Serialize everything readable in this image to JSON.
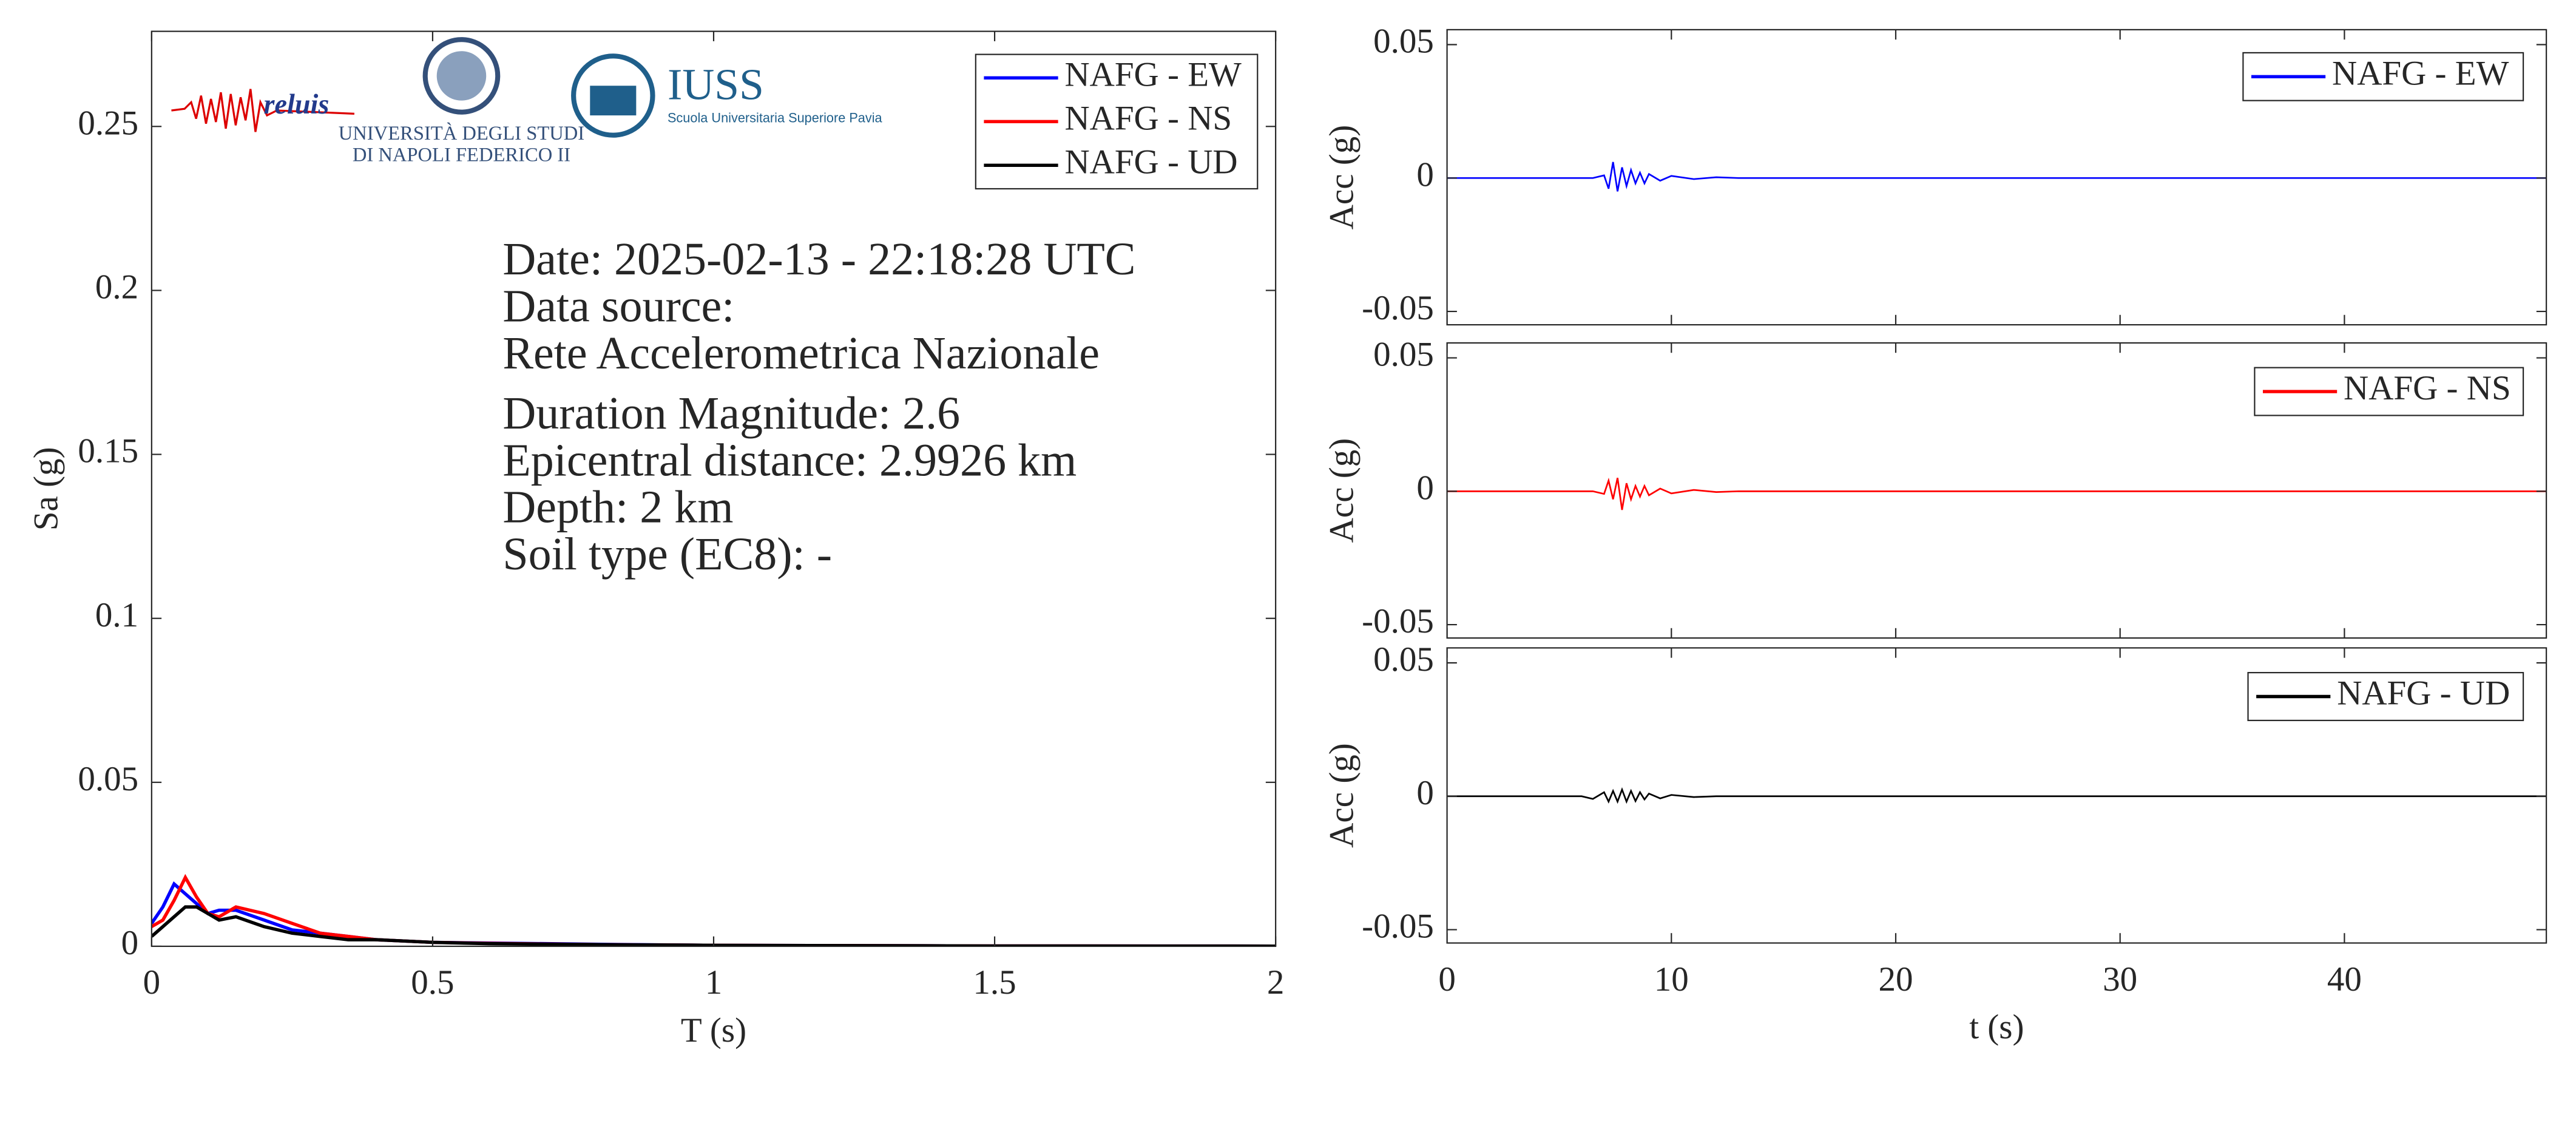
{
  "logos": {
    "reluis": "reluis",
    "unina_line1": "UNIVERSITÀ DEGLI STUDI",
    "unina_line2": "DI NAPOLI FEDERICO II",
    "iuss": "IUSS",
    "iuss_sub": "Scuola Universitaria Superiore Pavia"
  },
  "chart_data": [
    {
      "type": "line",
      "xlabel": "T (s)",
      "ylabel": "Sa (g)",
      "xlim": [
        0,
        2
      ],
      "ylim": [
        0,
        0.279
      ],
      "xticks": [
        0,
        0.5,
        1,
        1.5,
        2
      ],
      "yticks": [
        0,
        0.05,
        0.1,
        0.15,
        0.2,
        0.25
      ],
      "legend": "upper right",
      "annotations": [
        "Date: 2025-02-13 - 22:18:28 UTC",
        "Data source:",
        "Rete Accelerometrica Nazionale",
        "Duration Magnitude: 2.6",
        "Epicentral distance: 2.9926 km",
        "Depth: 2 km",
        "Soil type (EC8): -"
      ],
      "x": [
        0,
        0.02,
        0.04,
        0.06,
        0.08,
        0.1,
        0.12,
        0.15,
        0.2,
        0.25,
        0.3,
        0.35,
        0.4,
        0.5,
        0.6,
        0.8,
        1,
        1.5,
        2
      ],
      "series": [
        {
          "name": "NAFG - EW",
          "color": "#0000ff",
          "values": [
            0.007,
            0.012,
            0.019,
            0.016,
            0.013,
            0.01,
            0.011,
            0.011,
            0.008,
            0.005,
            0.004,
            0.003,
            0.002,
            0.0012,
            0.001,
            0.0006,
            0.0003,
            0.0001,
            5e-05
          ]
        },
        {
          "name": "NAFG - NS",
          "color": "#ff0000",
          "values": [
            0.006,
            0.008,
            0.014,
            0.021,
            0.015,
            0.01,
            0.009,
            0.012,
            0.01,
            0.007,
            0.004,
            0.003,
            0.002,
            0.0012,
            0.0009,
            0.0005,
            0.0003,
            0.0001,
            5e-05
          ]
        },
        {
          "name": "NAFG - UD",
          "color": "#000000",
          "values": [
            0.003,
            0.006,
            0.009,
            0.012,
            0.012,
            0.01,
            0.008,
            0.009,
            0.006,
            0.004,
            0.003,
            0.002,
            0.002,
            0.0012,
            0.0008,
            0.0005,
            0.0003,
            0.0001,
            5e-05
          ]
        }
      ]
    },
    {
      "type": "line",
      "ylabel": "Acc (g)",
      "xlim": [
        0,
        49
      ],
      "ylim": [
        -0.055,
        0.0556
      ],
      "xticks": [
        0,
        10,
        20,
        30,
        40
      ],
      "yticks": [
        -0.05,
        0,
        0.05
      ],
      "legend": "upper right",
      "x": [
        0,
        6.5,
        7,
        7.2,
        7.4,
        7.6,
        7.8,
        8,
        8.2,
        8.4,
        8.6,
        8.8,
        9,
        9.5,
        10,
        11,
        12,
        13,
        49
      ],
      "series": [
        {
          "name": "NAFG - EW",
          "color": "#0000ff",
          "values": [
            0,
            0,
            0.001,
            -0.004,
            0.006,
            -0.005,
            0.004,
            -0.003,
            0.003,
            -0.002,
            0.002,
            -0.002,
            0.0015,
            -0.001,
            0.0008,
            -0.0004,
            0.0003,
            0,
            0
          ]
        }
      ]
    },
    {
      "type": "line",
      "ylabel": "Acc (g)",
      "xlim": [
        0,
        49
      ],
      "ylim": [
        -0.055,
        0.0556
      ],
      "xticks": [
        0,
        10,
        20,
        30,
        40
      ],
      "yticks": [
        -0.05,
        0,
        0.05
      ],
      "legend": "upper right",
      "x": [
        0,
        6.5,
        7,
        7.2,
        7.4,
        7.6,
        7.8,
        8,
        8.2,
        8.4,
        8.6,
        8.8,
        9,
        9.5,
        10,
        11,
        12,
        13,
        49
      ],
      "series": [
        {
          "name": "NAFG - NS",
          "color": "#ff0000",
          "values": [
            0,
            0,
            -0.001,
            0.004,
            -0.003,
            0.005,
            -0.007,
            0.003,
            -0.003,
            0.002,
            -0.002,
            0.002,
            -0.0015,
            0.001,
            -0.0008,
            0.0005,
            -0.0003,
            0,
            0
          ]
        }
      ]
    },
    {
      "type": "line",
      "xlabel": "t (s)",
      "ylabel": "Acc (g)",
      "xlim": [
        0,
        49
      ],
      "ylim": [
        -0.055,
        0.0556
      ],
      "xticks": [
        0,
        10,
        20,
        30,
        40
      ],
      "yticks": [
        -0.05,
        0,
        0.05
      ],
      "legend": "upper right",
      "x": [
        0,
        6,
        6.5,
        7,
        7.2,
        7.4,
        7.6,
        7.8,
        8,
        8.2,
        8.4,
        8.6,
        8.8,
        9,
        9.5,
        10,
        11,
        12,
        49
      ],
      "series": [
        {
          "name": "NAFG - UD",
          "color": "#000000",
          "values": [
            0,
            0,
            -0.001,
            0.0015,
            -0.002,
            0.002,
            -0.002,
            0.0025,
            -0.002,
            0.002,
            -0.0018,
            0.0015,
            -0.0012,
            0.001,
            -0.0008,
            0.0005,
            -0.0003,
            0,
            0
          ]
        }
      ]
    }
  ]
}
